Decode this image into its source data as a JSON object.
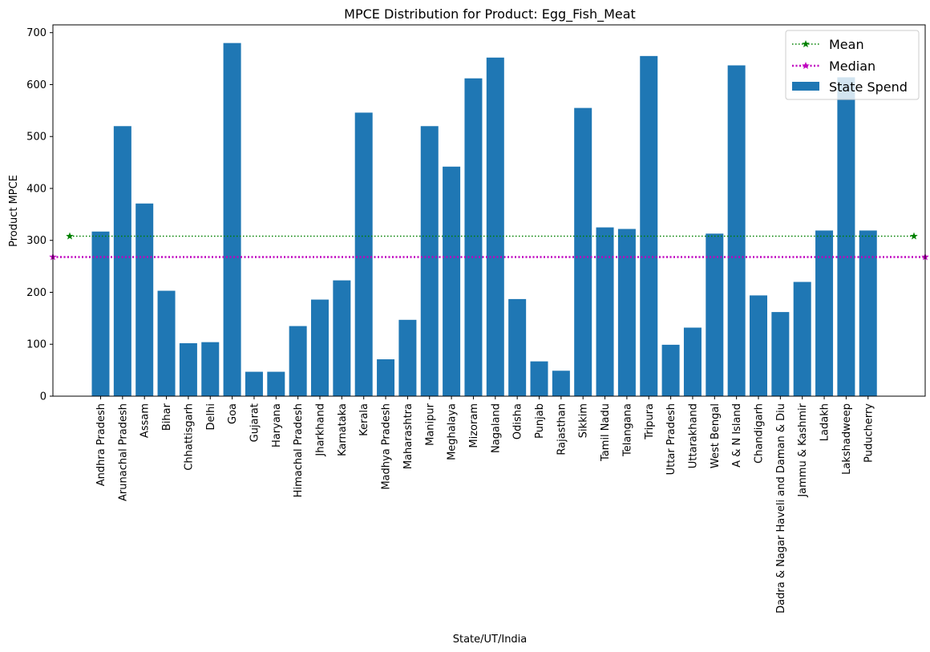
{
  "chart_data": {
    "type": "bar",
    "title": "MPCE Distribution for Product: Egg_Fish_Meat",
    "xlabel": "State/UT/India",
    "ylabel": "Product MPCE",
    "ylim": [
      0,
      715
    ],
    "yticks": [
      0,
      100,
      200,
      300,
      400,
      500,
      600,
      700
    ],
    "grid": false,
    "legend_position": "top-right",
    "categories": [
      "Andhra Pradesh",
      "Arunachal Pradesh",
      "Assam",
      "Bihar",
      "Chhattisgarh",
      "Delhi",
      "Goa",
      "Gujarat",
      "Haryana",
      "Himachal Pradesh",
      "Jharkhand",
      "Karnataka",
      "Kerala",
      "Madhya Pradesh",
      "Maharashtra",
      "Manipur",
      "Meghalaya",
      "Mizoram",
      "Nagaland",
      "Odisha",
      "Punjab",
      "Rajasthan",
      "Sikkim",
      "Tamil Nadu",
      "Telangana",
      "Tripura",
      "Uttar Pradesh",
      "Uttarakhand",
      "West Bengal",
      "A & N Island",
      "Chandigarh",
      "Dadra & Nagar Haveli and Daman & Diu",
      "Jammu & Kashmir",
      "Ladakh",
      "Lakshadweep",
      "Puducherry"
    ],
    "series": [
      {
        "name": "State Spend",
        "color": "#1f77b4",
        "values": [
          317,
          520,
          371,
          203,
          102,
          104,
          680,
          47,
          47,
          135,
          186,
          223,
          546,
          71,
          147,
          520,
          442,
          612,
          652,
          187,
          67,
          49,
          555,
          325,
          322,
          655,
          99,
          132,
          313,
          637,
          194,
          162,
          220,
          319,
          614,
          319
        ]
      }
    ],
    "reference_lines": [
      {
        "name": "Mean",
        "value": 308,
        "color": "#008000",
        "style": "dotted",
        "marker": "star"
      },
      {
        "name": "Median",
        "value": 268,
        "color": "#bf00bf",
        "style": "dotted",
        "marker": "star"
      }
    ],
    "legend": [
      "Mean",
      "Median",
      "State Spend"
    ]
  }
}
